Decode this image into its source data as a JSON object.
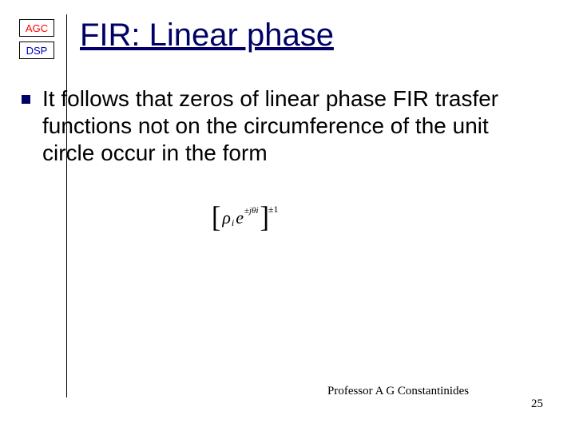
{
  "logo": {
    "agc": "AGC",
    "dsp": "DSP"
  },
  "title": "FIR: Linear phase",
  "body": "It follows that zeros of linear phase FIR trasfer functions not on the circumference of the unit circle occur in the form",
  "equation": {
    "rho": "ρ",
    "sub_i_1": "i",
    "e": "e",
    "pm1": "±",
    "j": "j",
    "theta": "θ",
    "sub_i_2": "i",
    "outer_pm": "±",
    "outer_one": "1"
  },
  "footer": "Professor A G Constantinides",
  "page": "25",
  "colors": {
    "title": "#000066",
    "bullet": "#000066",
    "agc": "#ff0000",
    "dsp": "#0000c0",
    "body": "#000000",
    "bg": "#ffffff"
  }
}
